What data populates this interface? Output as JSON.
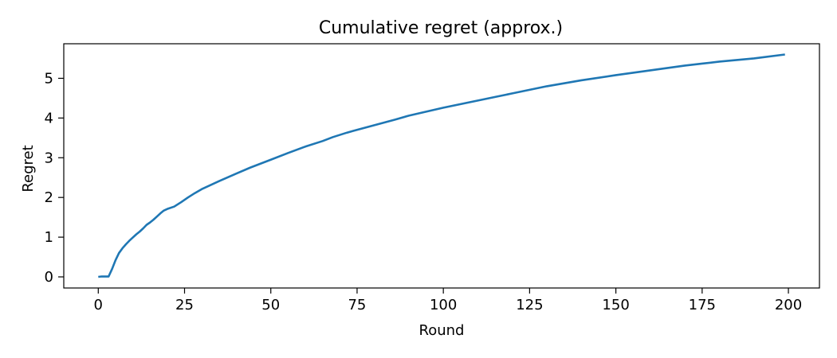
{
  "chart_data": {
    "type": "line",
    "title": "Cumulative regret (approx.)",
    "xlabel": "Round",
    "ylabel": "Regret",
    "xlim": [
      -10,
      209
    ],
    "ylim": [
      -0.28,
      5.87
    ],
    "xticks": [
      0,
      25,
      50,
      75,
      100,
      125,
      150,
      175,
      200
    ],
    "yticks": [
      0,
      1,
      2,
      3,
      4,
      5
    ],
    "grid": false,
    "legend": "none",
    "series": [
      {
        "color": "#1f77b4",
        "x": [
          0,
          1,
          2,
          3,
          4,
          5,
          6,
          7,
          8,
          9,
          10,
          11,
          12,
          13,
          14,
          15,
          16,
          17,
          18,
          19,
          20,
          22,
          24,
          26,
          28,
          30,
          35,
          40,
          44,
          50,
          55,
          60,
          65,
          68,
          72,
          74,
          80,
          86,
          90,
          100,
          110,
          115,
          120,
          125,
          130,
          140,
          150,
          160,
          170,
          175,
          180,
          190,
          199
        ],
        "y": [
          0.0,
          0.01,
          0.01,
          0.01,
          0.2,
          0.42,
          0.6,
          0.72,
          0.82,
          0.91,
          0.99,
          1.07,
          1.14,
          1.22,
          1.31,
          1.37,
          1.44,
          1.52,
          1.6,
          1.67,
          1.71,
          1.77,
          1.88,
          2.0,
          2.11,
          2.21,
          2.41,
          2.6,
          2.75,
          2.95,
          3.12,
          3.28,
          3.42,
          3.52,
          3.63,
          3.68,
          3.82,
          3.96,
          4.06,
          4.26,
          4.44,
          4.53,
          4.62,
          4.71,
          4.8,
          4.95,
          5.08,
          5.2,
          5.32,
          5.37,
          5.42,
          5.5,
          5.6
        ]
      }
    ]
  }
}
